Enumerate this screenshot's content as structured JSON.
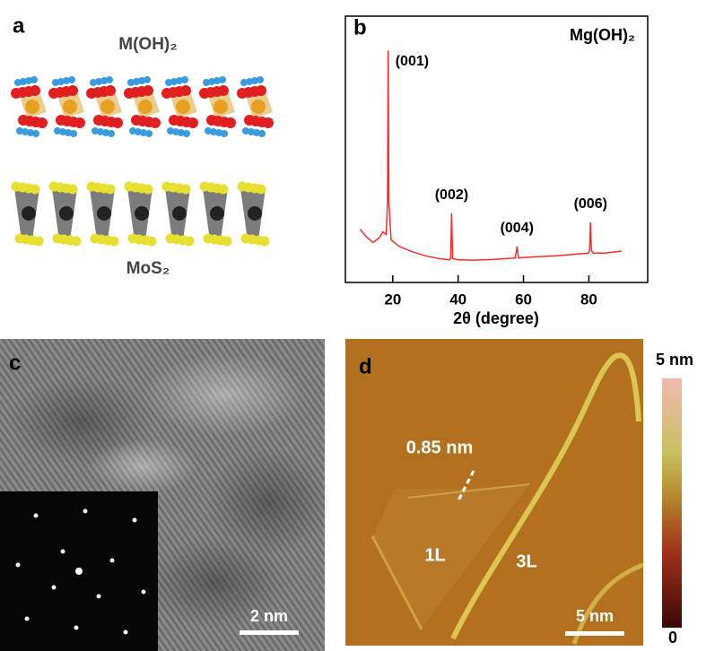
{
  "panels": {
    "a": {
      "label": "a",
      "top_caption": "M(OH)₂",
      "bottom_caption": "MoS₂"
    },
    "c": {
      "label": "c",
      "scale_bar": "2 nm"
    },
    "d": {
      "label": "d",
      "thickness": "0.85 nm",
      "region_1": "1L",
      "region_2": "3L",
      "scale_bar": "5 nm",
      "colorbar_max": "5 nm",
      "colorbar_min": "0"
    }
  },
  "chart_data": {
    "type": "line",
    "panel_label": "b",
    "title": "Mg(OH)₂",
    "x_label": "2θ (degree)",
    "x": [
      10,
      12,
      14,
      16,
      17,
      18,
      18.4,
      18.6,
      18.8,
      19.5,
      22,
      26,
      30,
      34,
      37.4,
      37.7,
      38,
      38.3,
      40,
      45,
      50,
      55,
      57.5,
      58,
      58.5,
      62,
      70,
      75,
      79.8,
      80.2,
      80.5,
      80.8,
      81.3,
      85,
      90
    ],
    "values": [
      20,
      17,
      15,
      17,
      19,
      18,
      30,
      87,
      30,
      16,
      13.5,
      11.5,
      10,
      9,
      8.5,
      9,
      26,
      9,
      8.5,
      8.4,
      8.6,
      9,
      9.2,
      13.5,
      9.2,
      9.5,
      10,
      10.5,
      11,
      12,
      22.6,
      12,
      11,
      11,
      11.8
    ],
    "value_labels": [
      null,
      null,
      null,
      null,
      null,
      null,
      null,
      "(001)",
      null,
      null,
      null,
      null,
      null,
      null,
      null,
      null,
      "(002)",
      null,
      null,
      null,
      null,
      null,
      null,
      "(004)",
      null,
      null,
      null,
      null,
      null,
      null,
      "(006)",
      null,
      null,
      null,
      null
    ],
    "color": "#ff2a2a",
    "xlim": [
      5.5,
      98
    ],
    "ylim": [
      0,
      100
    ],
    "xticks": [
      20,
      40,
      60,
      80
    ]
  }
}
